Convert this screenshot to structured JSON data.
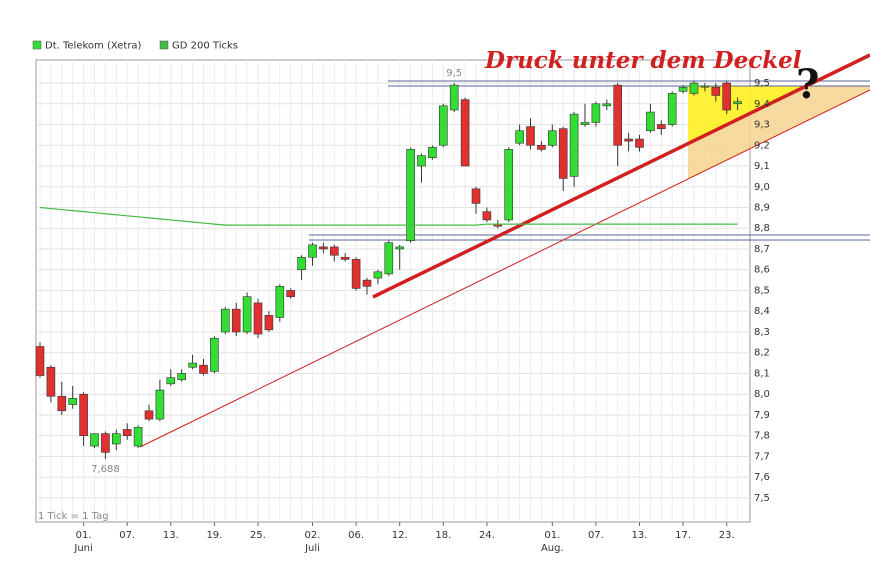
{
  "chart_data": {
    "type": "candlestick",
    "legend": "top-left",
    "grid": true,
    "note": "1 Tick = 1 Tag",
    "annotation": "Druck unter dem Deckel",
    "question": "?",
    "extremes": [
      {
        "value": 9.5,
        "label": "9,5"
      },
      {
        "value": 7.688,
        "label": "7,688"
      }
    ],
    "categories": [
      null,
      null,
      null,
      null,
      "01.",
      null,
      null,
      null,
      "07.",
      null,
      null,
      null,
      "13.",
      null,
      null,
      null,
      "19.",
      null,
      null,
      null,
      "25.",
      null,
      null,
      null,
      null,
      "02.",
      null,
      null,
      null,
      "06.",
      null,
      null,
      null,
      "12.",
      null,
      null,
      null,
      "18.",
      null,
      null,
      null,
      "24.",
      null,
      null,
      null,
      null,
      null,
      "01.",
      null,
      null,
      null,
      "07.",
      null,
      null,
      null,
      "13.",
      null,
      null,
      null,
      "17.",
      null,
      null,
      null,
      "23.",
      null
    ],
    "months": [
      null,
      null,
      null,
      null,
      "Juni",
      null,
      null,
      null,
      null,
      null,
      null,
      null,
      null,
      null,
      null,
      null,
      null,
      null,
      null,
      null,
      null,
      null,
      null,
      null,
      null,
      "Juli",
      null,
      null,
      null,
      null,
      null,
      null,
      null,
      null,
      null,
      null,
      null,
      null,
      null,
      null,
      null,
      null,
      null,
      null,
      null,
      null,
      null,
      "Aug.",
      null,
      null,
      null,
      null,
      null,
      null,
      null,
      null,
      null,
      null,
      null,
      null,
      null,
      null,
      null,
      null,
      null
    ],
    "ylim": [
      7.384,
      9.611
    ],
    "yticks": [
      {
        "value": 7.5,
        "label": "7,5"
      },
      {
        "value": 7.6,
        "label": "7,6"
      },
      {
        "value": 7.7,
        "label": "7,7"
      },
      {
        "value": 7.8,
        "label": "7,8"
      },
      {
        "value": 7.9,
        "label": "7,9"
      },
      {
        "value": 8.0,
        "label": "8,0"
      },
      {
        "value": 8.1,
        "label": "8,1"
      },
      {
        "value": 8.2,
        "label": "8,2"
      },
      {
        "value": 8.3,
        "label": "8,3"
      },
      {
        "value": 8.4,
        "label": "8,4"
      },
      {
        "value": 8.5,
        "label": "8,5"
      },
      {
        "value": 8.6,
        "label": "8,6"
      },
      {
        "value": 8.7,
        "label": "8,7"
      },
      {
        "value": 8.8,
        "label": "8,8"
      },
      {
        "value": 8.9,
        "label": "8,9"
      },
      {
        "value": 9.0,
        "label": "9,0"
      },
      {
        "value": 9.1,
        "label": "9,1"
      },
      {
        "value": 9.2,
        "label": "9,2"
      },
      {
        "value": 9.3,
        "label": "9,3"
      },
      {
        "value": 9.4,
        "label": "9,4"
      },
      {
        "value": 9.5,
        "label": "9,5"
      }
    ],
    "series": [
      {
        "name": "Dt. Telekom (Xetra)",
        "color": "#33dd33",
        "down_color": "#e03030",
        "open": [
          8.23,
          8.13,
          7.99,
          7.95,
          8.0,
          7.75,
          7.81,
          7.76,
          7.83,
          7.75,
          7.92,
          7.88,
          8.05,
          8.07,
          8.13,
          8.14,
          8.11,
          8.3,
          8.41,
          8.3,
          8.44,
          8.38,
          8.37,
          8.5,
          8.6,
          8.66,
          8.71,
          8.71,
          8.66,
          8.65,
          8.55,
          8.56,
          8.58,
          8.7,
          8.74,
          9.1,
          9.14,
          9.2,
          9.37,
          9.42,
          8.99,
          8.88,
          8.82,
          8.84,
          9.21,
          9.29,
          9.2,
          9.2,
          9.28,
          9.05,
          9.3,
          9.31,
          9.39,
          9.49,
          9.23,
          9.23,
          9.27,
          9.3,
          9.3,
          9.46,
          9.45,
          9.48,
          9.48,
          9.5,
          9.4
        ],
        "high": [
          8.25,
          8.14,
          8.06,
          8.04,
          8.01,
          7.81,
          7.82,
          7.83,
          7.86,
          7.85,
          7.95,
          8.07,
          8.12,
          8.12,
          8.19,
          8.17,
          8.28,
          8.42,
          8.44,
          8.49,
          8.46,
          8.4,
          8.53,
          8.51,
          8.67,
          8.73,
          8.73,
          8.72,
          8.68,
          8.66,
          8.56,
          8.6,
          8.74,
          8.72,
          9.19,
          9.16,
          9.2,
          9.4,
          9.5,
          9.43,
          9.0,
          8.9,
          8.84,
          9.19,
          9.3,
          9.33,
          9.22,
          9.3,
          9.29,
          9.36,
          9.4,
          9.41,
          9.42,
          9.5,
          9.26,
          9.25,
          9.4,
          9.32,
          9.46,
          9.49,
          9.51,
          9.5,
          9.5,
          9.51,
          9.43
        ],
        "low": [
          8.08,
          7.96,
          7.9,
          7.93,
          7.75,
          7.74,
          7.688,
          7.73,
          7.78,
          7.74,
          7.87,
          7.87,
          8.04,
          8.06,
          8.12,
          8.09,
          8.1,
          8.29,
          8.28,
          8.29,
          8.27,
          8.3,
          8.35,
          8.46,
          8.55,
          8.62,
          8.68,
          8.64,
          8.64,
          8.5,
          8.48,
          8.53,
          8.57,
          8.6,
          8.73,
          9.02,
          9.13,
          9.19,
          9.36,
          9.1,
          8.87,
          8.83,
          8.8,
          8.83,
          9.2,
          9.18,
          9.17,
          9.19,
          8.98,
          9.0,
          9.29,
          9.29,
          9.37,
          9.1,
          9.17,
          9.17,
          9.26,
          9.25,
          9.29,
          9.45,
          9.44,
          9.46,
          9.41,
          9.35,
          9.37
        ],
        "close": [
          8.09,
          7.99,
          7.92,
          7.98,
          7.8,
          7.81,
          7.72,
          7.81,
          7.8,
          7.84,
          7.88,
          8.02,
          8.08,
          8.1,
          8.15,
          8.1,
          8.27,
          8.41,
          8.3,
          8.47,
          8.29,
          8.31,
          8.52,
          8.47,
          8.66,
          8.72,
          8.7,
          8.67,
          8.65,
          8.51,
          8.52,
          8.59,
          8.73,
          8.71,
          9.18,
          9.15,
          9.19,
          9.39,
          9.49,
          9.1,
          8.92,
          8.84,
          8.81,
          9.18,
          9.27,
          9.2,
          9.18,
          9.27,
          9.04,
          9.35,
          9.31,
          9.4,
          9.4,
          9.2,
          9.22,
          9.19,
          9.36,
          9.28,
          9.45,
          9.48,
          9.5,
          9.485,
          9.44,
          9.37,
          9.41
        ]
      },
      {
        "name": "GD 200 Ticks",
        "type": "line",
        "color": "#44bb44",
        "values": [
          8.9,
          8.895,
          8.89,
          8.885,
          8.88,
          8.875,
          8.87,
          8.865,
          8.86,
          8.855,
          8.85,
          8.845,
          8.84,
          8.835,
          8.83,
          8.825,
          8.82,
          8.815,
          8.815,
          8.815,
          8.815,
          8.815,
          8.815,
          8.815,
          8.815,
          8.815,
          8.815,
          8.815,
          8.815,
          8.815,
          8.815,
          8.815,
          8.815,
          8.815,
          8.815,
          8.815,
          8.815,
          8.815,
          8.815,
          8.815,
          8.815,
          8.82,
          8.82,
          8.82,
          8.82,
          8.82,
          8.82,
          8.82,
          8.82,
          8.82,
          8.82,
          8.82,
          8.82,
          8.82,
          8.82,
          8.82,
          8.82,
          8.82,
          8.82,
          8.82,
          8.82,
          8.82,
          8.82,
          8.82,
          8.82
        ]
      }
    ]
  }
}
